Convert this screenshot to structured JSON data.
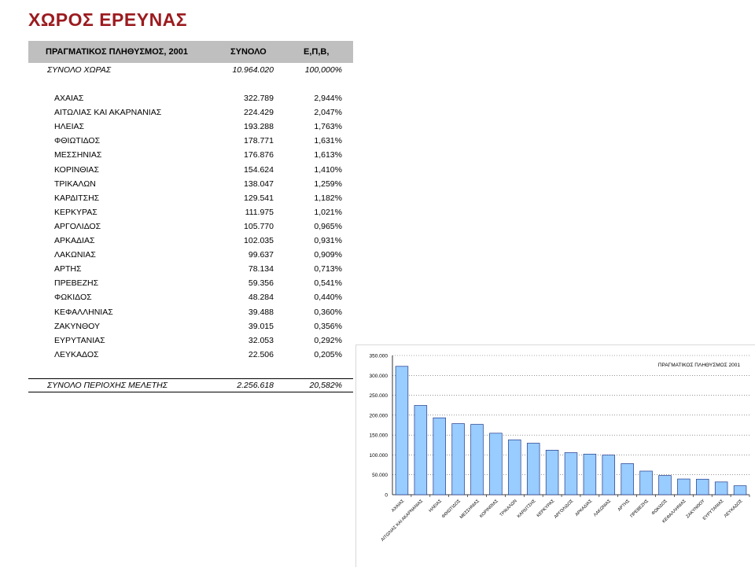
{
  "page_title": "ΧΩΡΟΣ ΕΡΕΥΝΑΣ",
  "table": {
    "headers": [
      "ΠΡΑΓΜΑΤΙΚΟΣ ΠΛΗΘΥΣΜΟΣ, 2001",
      "ΣΥΝΟΛΟ",
      "Ε,Π,Β,"
    ],
    "country_total": {
      "label": "ΣΥΝΟΛΟ ΧΩΡΑΣ",
      "value": "10.964.020",
      "share": "100,000%"
    },
    "rows": [
      {
        "name": "ΑΧΑΙΑΣ",
        "value": "322.789",
        "share": "2,944%"
      },
      {
        "name": "ΑΙΤΩΛΙΑΣ ΚΑΙ ΑΚΑΡΝΑΝΙΑΣ",
        "value": "224.429",
        "share": "2,047%"
      },
      {
        "name": "ΗΛΕΙΑΣ",
        "value": "193.288",
        "share": "1,763%"
      },
      {
        "name": "ΦΘΙΩΤΙΔΟΣ",
        "value": "178.771",
        "share": "1,631%"
      },
      {
        "name": "ΜΕΣΣΗΝΙΑΣ",
        "value": "176.876",
        "share": "1,613%"
      },
      {
        "name": "ΚΟΡΙΝΘΙΑΣ",
        "value": "154.624",
        "share": "1,410%"
      },
      {
        "name": "ΤΡΙΚΑΛΩΝ",
        "value": "138.047",
        "share": "1,259%"
      },
      {
        "name": "ΚΑΡΔΙΤΣΗΣ",
        "value": "129.541",
        "share": "1,182%"
      },
      {
        "name": "ΚΕΡΚΥΡΑΣ",
        "value": "111.975",
        "share": "1,021%"
      },
      {
        "name": "ΑΡΓΟΛΙΔΟΣ",
        "value": "105.770",
        "share": "0,965%"
      },
      {
        "name": "ΑΡΚΑΔΙΑΣ",
        "value": "102.035",
        "share": "0,931%"
      },
      {
        "name": "ΛΑΚΩΝΙΑΣ",
        "value": "99.637",
        "share": "0,909%"
      },
      {
        "name": "ΑΡΤΗΣ",
        "value": "78.134",
        "share": "0,713%"
      },
      {
        "name": "ΠΡΕΒΕΖΗΣ",
        "value": "59.356",
        "share": "0,541%"
      },
      {
        "name": "ΦΩΚΙΔΟΣ",
        "value": "48.284",
        "share": "0,440%"
      },
      {
        "name": "ΚΕΦΑΛΛΗΝΙΑΣ",
        "value": "39.488",
        "share": "0,360%"
      },
      {
        "name": "ΖΑΚΥΝΘΟΥ",
        "value": "39.015",
        "share": "0,356%"
      },
      {
        "name": "ΕΥΡΥΤΑΝΙΑΣ",
        "value": "32.053",
        "share": "0,292%"
      },
      {
        "name": "ΛΕΥΚΑΔΟΣ",
        "value": "22.506",
        "share": "0,205%"
      }
    ],
    "study_total": {
      "label": "ΣΥΝΟΛΟ ΠΕΡΙΟΧΗΣ ΜΕΛΕΤΗΣ",
      "value": "2.256.618",
      "share": "20,582%"
    }
  },
  "chart_data": {
    "type": "bar",
    "legend_label": "ΠΡΑΓΜΑΤΙΚΟΣ ΠΛΗΘΥΣΜΟΣ 2001",
    "legend_position": "top-right",
    "categories": [
      "ΑΧΑΙΑΣ",
      "ΑΙΤΩΛΙΑΣ ΚΑΙ ΑΚΑΡΝΑΝΙΑΣ",
      "ΗΛΕΙΑΣ",
      "ΦΘΙΩΤΙΔΟΣ",
      "ΜΕΣΣΗΝΙΑΣ",
      "ΚΟΡΙΝΘΙΑΣ",
      "ΤΡΙΚΑΛΩΝ",
      "ΚΑΡΔΙΤΣΗΣ",
      "ΚΕΡΚΥΡΑΣ",
      "ΑΡΓΟΛΙΔΟΣ",
      "ΑΡΚΑΔΙΑΣ",
      "ΛΑΚΩΝΙΑΣ",
      "ΑΡΤΗΣ",
      "ΠΡΕΒΕΖΗΣ",
      "ΦΩΚΙΔΟΣ",
      "ΚΕΦΑΛΛΗΝΙΑΣ",
      "ΖΑΚΥΝΘΟΥ",
      "ΕΥΡΥΤΑΝΙΑΣ",
      "ΛΕΥΚΑΔΟΣ"
    ],
    "values": [
      322789,
      224429,
      193288,
      178771,
      176876,
      154624,
      138047,
      129541,
      111975,
      105770,
      102035,
      99637,
      78134,
      59356,
      48284,
      39488,
      39015,
      32053,
      22506
    ],
    "ylim": [
      0,
      350000
    ],
    "yticks": [
      0,
      50000,
      100000,
      150000,
      200000,
      250000,
      300000,
      350000
    ],
    "ytick_labels": [
      "0",
      "50.000",
      "100.000",
      "150.000",
      "200.000",
      "250.000",
      "300.000",
      "350.000"
    ],
    "grid": "horizontal-dotted",
    "bar_color": "#99ccff",
    "bar_border": "#1f3a8a"
  }
}
